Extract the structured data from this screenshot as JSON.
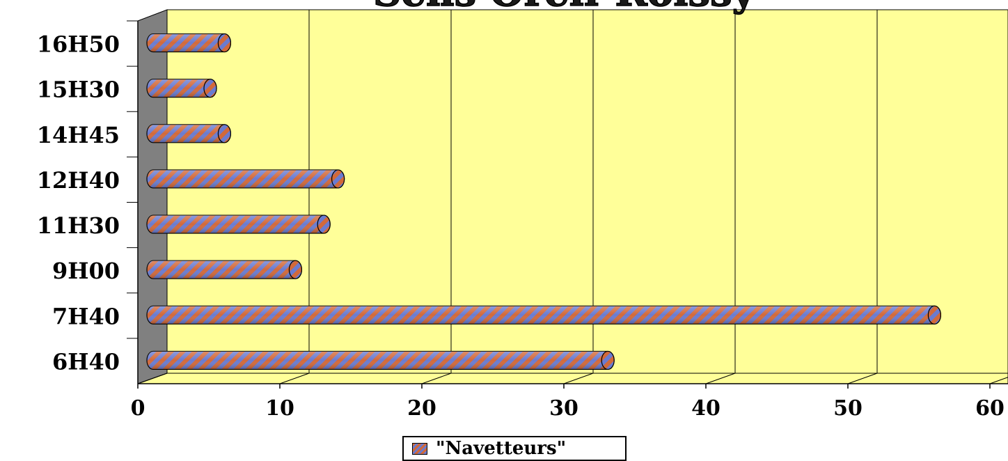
{
  "chart_data": {
    "type": "bar",
    "orientation": "horizontal",
    "title": "Sens Orell-Roissy",
    "categories": [
      "6H40",
      "7H40",
      "9H00",
      "11H30",
      "12H40",
      "14H45",
      "15H30",
      "16H50"
    ],
    "series": [
      {
        "name": "\"Navetteurs\"",
        "values": [
          33,
          56,
          11,
          13,
          14,
          6,
          5,
          6
        ]
      }
    ],
    "xlim": [
      0,
      60
    ],
    "xticks": [
      "0",
      "10",
      "20",
      "30",
      "40",
      "50",
      "60"
    ],
    "grid": true,
    "legend_position": "bottom",
    "colors": {
      "plot_background": "#ffff99",
      "side_wall": "#808080",
      "bar_stripe_a": "#d2693a",
      "bar_stripe_b": "#6a7bd0"
    }
  }
}
